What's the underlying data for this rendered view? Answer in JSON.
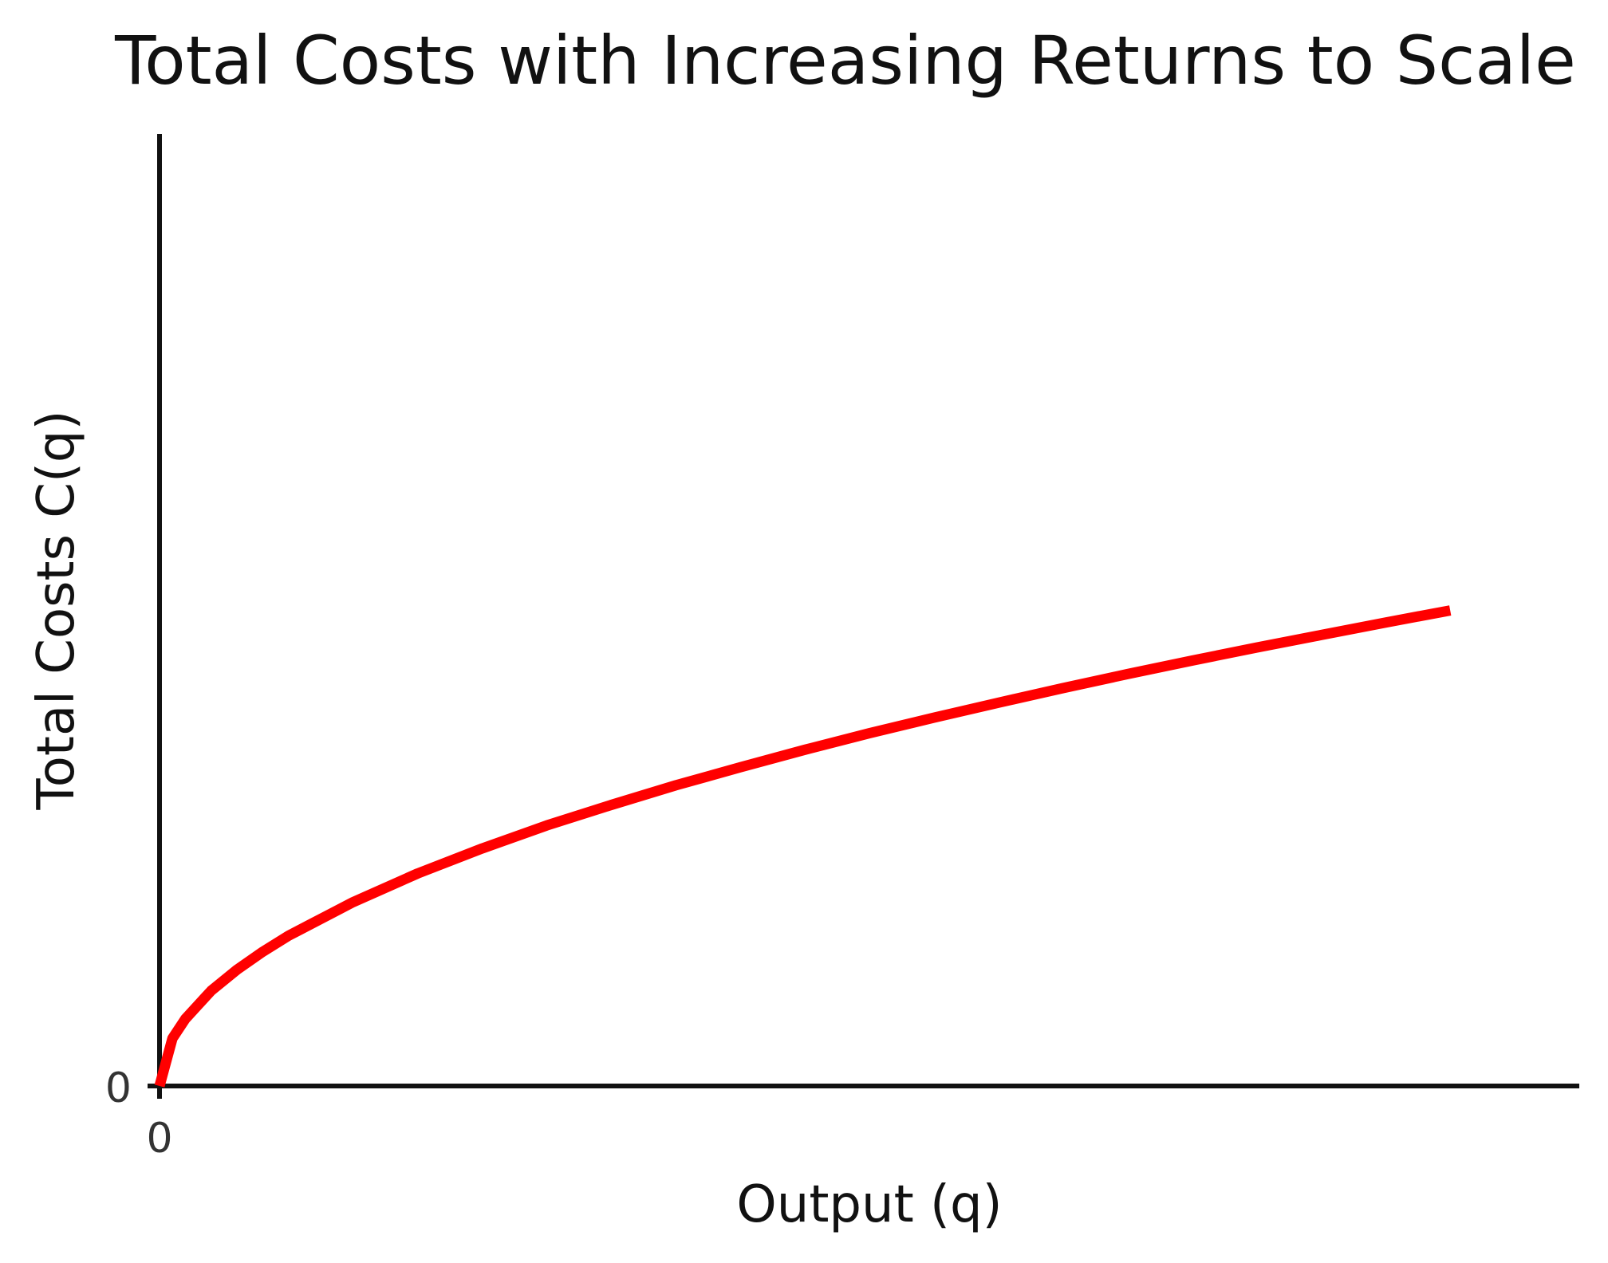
{
  "chart_data": {
    "type": "line",
    "title": "Total Costs with Increasing Returns to Scale",
    "xlabel": "Output (q)",
    "ylabel": "Total Costs C(q)",
    "xlim": [
      0,
      11
    ],
    "ylim": [
      0,
      19
    ],
    "x_ticks": [
      "0"
    ],
    "y_ticks": [
      "0"
    ],
    "grid": false,
    "legend": "none",
    "series": [
      {
        "color": "#ff0000",
        "x": [
          0,
          0.1,
          0.2,
          0.4,
          0.6,
          0.8,
          1,
          1.5,
          2,
          2.5,
          3,
          3.5,
          4,
          4.5,
          5,
          5.5,
          6,
          6.5,
          7,
          7.5,
          8,
          8.5,
          9,
          9.5,
          10
        ],
        "y": [
          0,
          0.95,
          1.34,
          1.9,
          2.32,
          2.68,
          3.0,
          3.67,
          4.24,
          4.74,
          5.2,
          5.61,
          6.0,
          6.36,
          6.71,
          7.04,
          7.35,
          7.65,
          7.94,
          8.22,
          8.49,
          8.75,
          9.0,
          9.25,
          9.49
        ]
      }
    ]
  }
}
